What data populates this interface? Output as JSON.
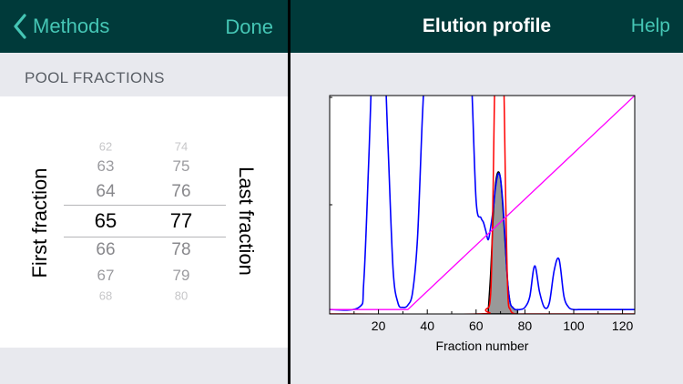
{
  "left": {
    "back_label": "Methods",
    "done_label": "Done",
    "section_title": "POOL FRACTIONS",
    "first_label": "First fraction",
    "last_label": "Last fraction",
    "first_values": [
      "62",
      "63",
      "64",
      "65",
      "66",
      "67",
      "68"
    ],
    "last_values": [
      "74",
      "75",
      "76",
      "77",
      "78",
      "79",
      "80"
    ],
    "first_selected": "65",
    "last_selected": "77"
  },
  "right": {
    "title": "Elution profile",
    "help_label": "Help"
  },
  "colors": {
    "header_bg": "#003a3a",
    "accent": "#45c6b5",
    "absorbance": "#0000ff",
    "selected_peak": "#ff0000",
    "gradient": "#ff00ff",
    "pool_fill": "#999999"
  },
  "chart_data": {
    "type": "line",
    "xlabel": "Fraction number",
    "xlim": [
      0,
      125
    ],
    "xticks": [
      "20",
      "40",
      "60",
      "80",
      "100",
      "120"
    ],
    "pool_range": [
      65,
      77
    ],
    "series": [
      {
        "x": [
          0,
          12,
          14,
          16,
          18,
          20,
          22,
          24,
          26,
          28,
          30,
          32,
          34,
          36,
          38,
          40,
          42,
          44,
          46,
          48,
          50,
          52,
          54,
          56,
          58,
          60,
          62,
          63,
          64,
          65,
          66,
          67,
          68,
          69,
          70,
          71,
          72,
          73,
          74,
          75,
          76,
          77,
          78,
          80,
          82,
          84,
          86,
          88,
          90,
          92,
          94,
          96,
          98,
          100,
          102,
          105,
          110,
          120,
          125
        ],
        "y": [
          0.02,
          0.03,
          0.15,
          0.7,
          1.3,
          1.3,
          1.3,
          0.75,
          0.2,
          0.05,
          0.03,
          0.04,
          0.1,
          0.35,
          0.9,
          1.3,
          1.3,
          1.3,
          1.3,
          1.3,
          1.3,
          1.3,
          1.3,
          1.3,
          1.1,
          0.52,
          0.44,
          0.42,
          0.38,
          0.34,
          0.4,
          0.48,
          0.58,
          0.64,
          0.62,
          0.5,
          0.32,
          0.14,
          0.05,
          0.03,
          0.02,
          0.02,
          0.02,
          0.03,
          0.08,
          0.22,
          0.1,
          0.03,
          0.05,
          0.2,
          0.25,
          0.08,
          0.03,
          0.02,
          0.02,
          0.02,
          0.02,
          0.02,
          0.02
        ]
      },
      {
        "x": [
          0,
          60,
          64,
          66,
          67,
          68,
          69,
          70,
          71,
          72,
          73,
          74,
          76,
          80,
          125
        ],
        "y": [
          0,
          0,
          0.02,
          0.1,
          0.6,
          1.3,
          1.3,
          1.3,
          1.3,
          0.6,
          0.1,
          0.02,
          0,
          0,
          0
        ]
      },
      {
        "x": [
          0,
          32,
          125
        ],
        "y": [
          0.02,
          0.02,
          1.0
        ]
      },
      {
        "x": [
          65,
          66,
          67,
          68,
          69,
          70,
          71,
          72,
          73,
          74,
          75,
          76,
          77
        ],
        "y": [
          0.02,
          0.2,
          0.45,
          0.6,
          0.65,
          0.62,
          0.48,
          0.3,
          0.14,
          0.05,
          0.03,
          0.02,
          0.02
        ]
      }
    ]
  }
}
